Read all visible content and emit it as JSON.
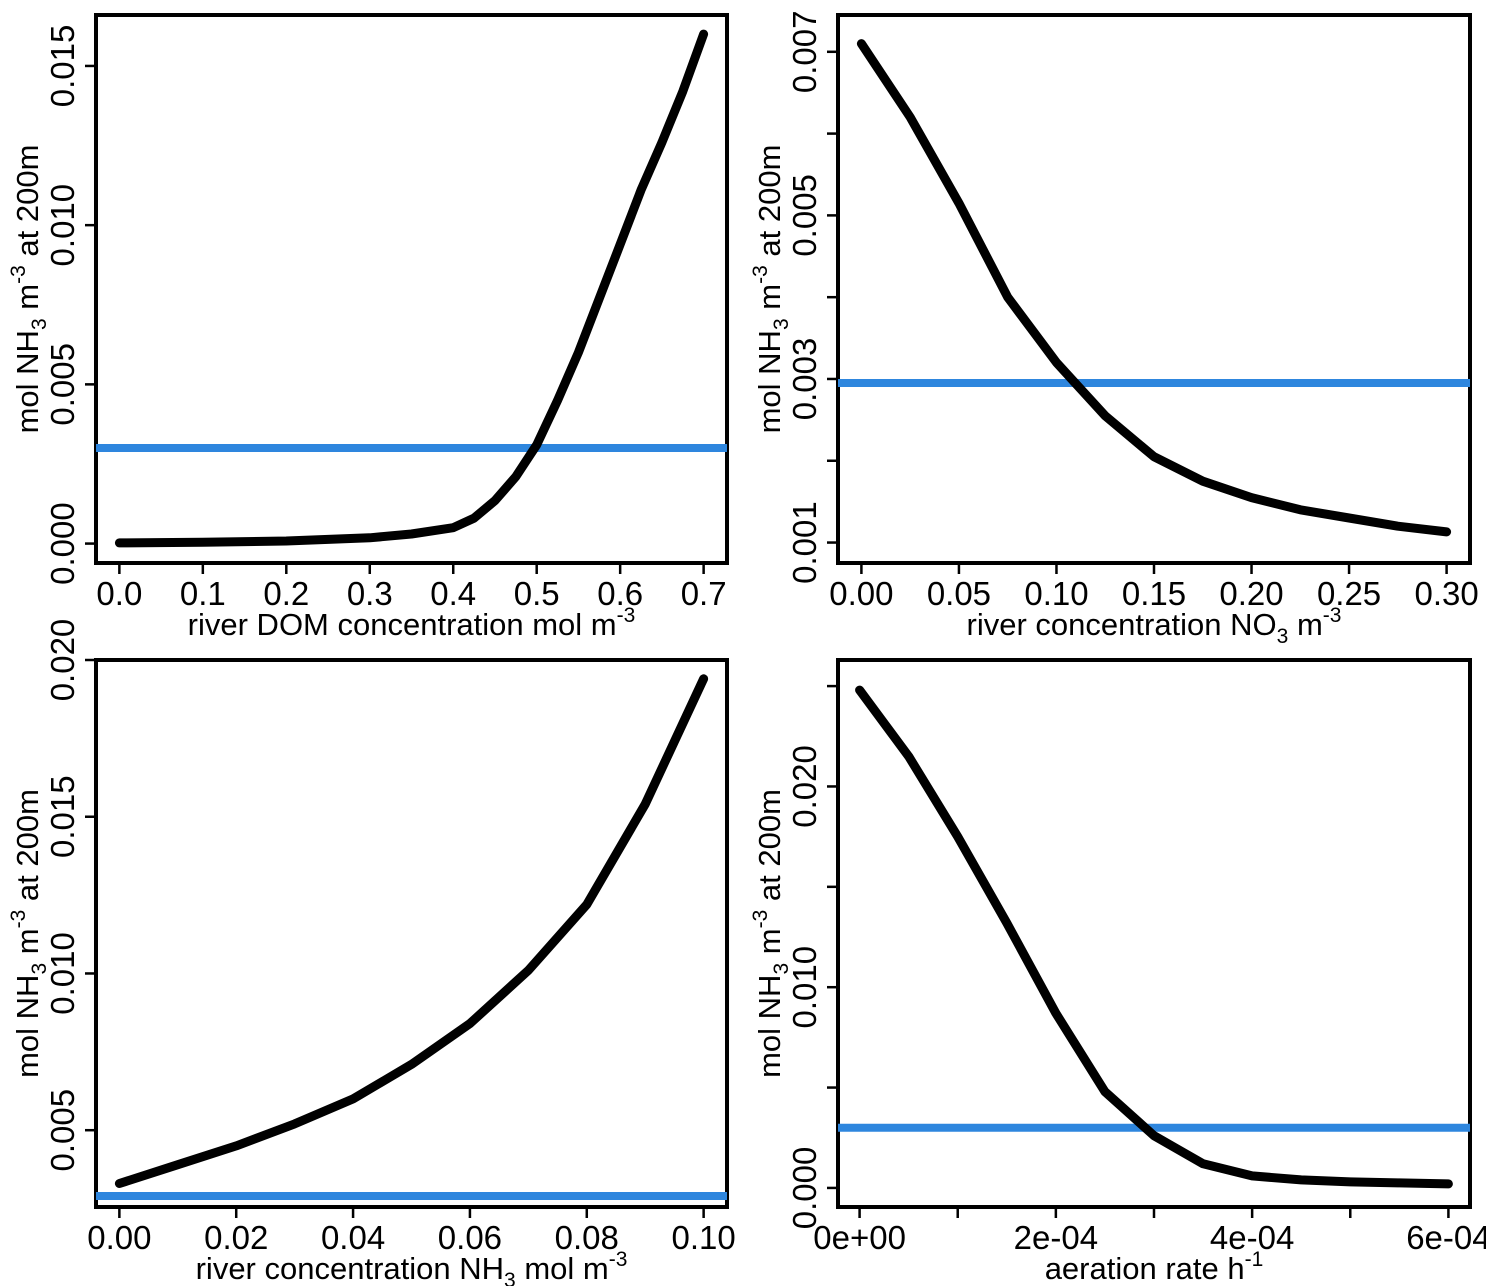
{
  "colors": {
    "curve": "#000000",
    "threshold": "#2e86de"
  },
  "chart_data": [
    {
      "type": "line",
      "xlabel": {
        "main": "river DOM concentration mol m",
        "sup": "-3"
      },
      "ylabel": {
        "p1": "mol NH",
        "sub": "3",
        "p2": " m",
        "sup": "-3",
        "p3": " at 200m"
      },
      "xlim": [
        -0.028,
        0.728
      ],
      "ylim": [
        -0.00061,
        0.0166
      ],
      "xticks": [
        0.0,
        0.1,
        0.2,
        0.3,
        0.4,
        0.5,
        0.6,
        0.7
      ],
      "xtick_labels": [
        "0.0",
        "0.1",
        "0.2",
        "0.3",
        "0.4",
        "0.5",
        "0.6",
        "0.7"
      ],
      "yticks": [
        0.0,
        0.005,
        0.01,
        0.015
      ],
      "ytick_labels": [
        "0.000",
        "0.005",
        "0.010",
        "0.015"
      ],
      "threshold": 0.003,
      "series": [
        {
          "x": [
            0.0,
            0.1,
            0.2,
            0.3,
            0.35,
            0.4,
            0.425,
            0.45,
            0.475,
            0.5,
            0.525,
            0.55,
            0.575,
            0.6,
            0.625,
            0.65,
            0.675,
            0.7
          ],
          "y": [
            2e-05,
            4e-05,
            8e-05,
            0.00018,
            0.0003,
            0.0005,
            0.0008,
            0.00135,
            0.0021,
            0.0031,
            0.0045,
            0.006,
            0.0077,
            0.0094,
            0.0111,
            0.0126,
            0.0142,
            0.016
          ]
        }
      ]
    },
    {
      "type": "line",
      "xlabel": {
        "p1": "river concentration NO",
        "sub": "3",
        "p2": " m",
        "sup": "-3"
      },
      "ylabel": {
        "p1": "mol NH",
        "sub": "3",
        "p2": " m",
        "sup": "-3",
        "p3": " at 200m"
      },
      "xlim": [
        -0.012,
        0.312
      ],
      "ylim": [
        0.00075,
        0.00745
      ],
      "xticks": [
        0.0,
        0.05,
        0.1,
        0.15,
        0.2,
        0.25,
        0.3
      ],
      "xtick_labels": [
        "0.00",
        "0.05",
        "0.10",
        "0.15",
        "0.20",
        "0.25",
        "0.30"
      ],
      "yticks": [
        0.001,
        0.002,
        0.003,
        0.004,
        0.005,
        0.006,
        0.007
      ],
      "ytick_labels": [
        "0.001",
        "",
        "0.003",
        "",
        "0.005",
        "",
        "0.007"
      ],
      "threshold": 0.00295,
      "series": [
        {
          "x": [
            0.0,
            0.025,
            0.05,
            0.075,
            0.1,
            0.125,
            0.15,
            0.175,
            0.2,
            0.225,
            0.25,
            0.275,
            0.3
          ],
          "y": [
            0.0071,
            0.0062,
            0.00515,
            0.004,
            0.0032,
            0.00255,
            0.00205,
            0.00175,
            0.00155,
            0.0014,
            0.0013,
            0.0012,
            0.00113
          ]
        }
      ]
    },
    {
      "type": "line",
      "xlabel": {
        "p1": "river concentration NH",
        "sub": "3",
        "p2": " mol m",
        "sup": "-3"
      },
      "ylabel": {
        "p1": "mol NH",
        "sub": "3",
        "p2": " m",
        "sup": "-3",
        "p3": " at 200m"
      },
      "xlim": [
        -0.004,
        0.104
      ],
      "ylim": [
        0.00255,
        0.02
      ],
      "xticks": [
        0.0,
        0.02,
        0.04,
        0.06,
        0.08,
        0.1
      ],
      "xtick_labels": [
        "0.00",
        "0.02",
        "0.04",
        "0.06",
        "0.08",
        "0.10"
      ],
      "yticks": [
        0.005,
        0.01,
        0.015,
        0.02
      ],
      "ytick_labels": [
        "0.005",
        "0.010",
        "0.015",
        "0.020"
      ],
      "threshold": 0.0029,
      "series": [
        {
          "x": [
            0.0,
            0.01,
            0.02,
            0.03,
            0.04,
            0.05,
            0.06,
            0.07,
            0.08,
            0.09,
            0.1
          ],
          "y": [
            0.0033,
            0.0039,
            0.0045,
            0.0052,
            0.006,
            0.0071,
            0.0084,
            0.0101,
            0.0122,
            0.0154,
            0.0194
          ]
        }
      ]
    },
    {
      "type": "line",
      "xlabel": {
        "main": "aeration rate h",
        "sup": "-1"
      },
      "ylabel": {
        "p1": "mol NH",
        "sub": "3",
        "p2": " m",
        "sup": "-3",
        "p3": " at 200m"
      },
      "xlim": [
        -2.2e-05,
        0.000622
      ],
      "ylim": [
        -0.00095,
        0.0263
      ],
      "xticks": [
        0.0,
        0.0001,
        0.0002,
        0.0003,
        0.0004,
        0.0005,
        0.0006
      ],
      "xtick_labels": [
        "0e+00",
        "",
        "2e-04",
        "",
        "4e-04",
        "",
        "6e-04"
      ],
      "yticks": [
        0.0,
        0.005,
        0.01,
        0.015,
        0.02,
        0.025
      ],
      "ytick_labels": [
        "0.000",
        "",
        "0.010",
        "",
        "0.020",
        ""
      ],
      "threshold": 0.003,
      "series": [
        {
          "x": [
            0.0,
            5e-05,
            0.0001,
            0.00015,
            0.0002,
            0.00025,
            0.0003,
            0.00035,
            0.0004,
            0.00045,
            0.0005,
            0.00055,
            0.0006
          ],
          "y": [
            0.0248,
            0.0215,
            0.0175,
            0.0132,
            0.0087,
            0.0048,
            0.0026,
            0.0012,
            0.0006,
            0.0004,
            0.0003,
            0.00025,
            0.0002
          ]
        }
      ]
    }
  ]
}
